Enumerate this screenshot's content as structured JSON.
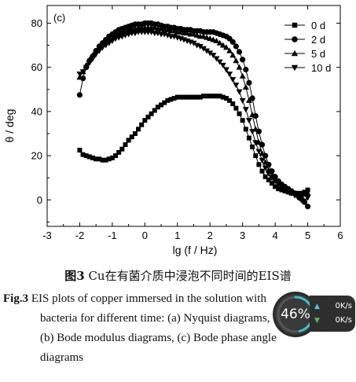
{
  "chart_data": {
    "type": "scatter",
    "panel_label": "(c)",
    "xlabel": "lg (f / Hz)",
    "ylabel": "θ / deg",
    "xlim": [
      -3,
      6
    ],
    "ylim": [
      -12,
      88
    ],
    "x_ticks": [
      -3,
      -2,
      -1,
      0,
      1,
      2,
      3,
      4,
      5,
      6
    ],
    "y_ticks": [
      0,
      20,
      40,
      60,
      80
    ],
    "legend_position": "top-right",
    "series": [
      {
        "name": "0 d",
        "marker": "square",
        "points": [
          [
            -2.0,
            22.5
          ],
          [
            -1.9,
            20.5
          ],
          [
            -1.8,
            20.0
          ],
          [
            -1.7,
            19.5
          ],
          [
            -1.6,
            19.0
          ],
          [
            -1.5,
            18.5
          ],
          [
            -1.4,
            18.5
          ],
          [
            -1.3,
            18.0
          ],
          [
            -1.2,
            18.0
          ],
          [
            -1.1,
            18.5
          ],
          [
            -1.0,
            19.0
          ],
          [
            -0.9,
            20.0
          ],
          [
            -0.8,
            21.5
          ],
          [
            -0.7,
            23.0
          ],
          [
            -0.6,
            25.0
          ],
          [
            -0.5,
            27.0
          ],
          [
            -0.4,
            28.5
          ],
          [
            -0.3,
            30.0
          ],
          [
            -0.2,
            32.0
          ],
          [
            -0.1,
            34.0
          ],
          [
            0.0,
            36.0
          ],
          [
            0.1,
            37.5
          ],
          [
            0.2,
            39.0
          ],
          [
            0.3,
            40.5
          ],
          [
            0.4,
            42.0
          ],
          [
            0.5,
            43.0
          ],
          [
            0.6,
            44.0
          ],
          [
            0.7,
            45.0
          ],
          [
            0.8,
            45.5
          ],
          [
            0.9,
            46.0
          ],
          [
            1.0,
            46.5
          ],
          [
            1.1,
            46.5
          ],
          [
            1.2,
            46.5
          ],
          [
            1.3,
            46.5
          ],
          [
            1.4,
            46.5
          ],
          [
            1.5,
            46.5
          ],
          [
            1.6,
            46.5
          ],
          [
            1.7,
            46.5
          ],
          [
            1.8,
            47.0
          ],
          [
            1.9,
            47.0
          ],
          [
            2.0,
            47.0
          ],
          [
            2.1,
            47.0
          ],
          [
            2.2,
            47.0
          ],
          [
            2.3,
            47.0
          ],
          [
            2.4,
            46.5
          ],
          [
            2.5,
            46.0
          ],
          [
            2.6,
            45.0
          ],
          [
            2.7,
            43.5
          ],
          [
            2.8,
            41.5
          ],
          [
            2.9,
            39.0
          ],
          [
            3.0,
            36.0
          ],
          [
            3.1,
            32.0
          ],
          [
            3.2,
            28.0
          ],
          [
            3.3,
            24.0
          ],
          [
            3.4,
            20.0
          ],
          [
            3.5,
            16.0
          ],
          [
            3.6,
            13.0
          ],
          [
            3.7,
            10.5
          ],
          [
            3.8,
            9.0
          ],
          [
            3.9,
            7.5
          ],
          [
            4.0,
            6.0
          ],
          [
            4.1,
            5.0
          ],
          [
            4.2,
            4.5
          ],
          [
            4.3,
            4.0
          ],
          [
            4.4,
            3.5
          ],
          [
            4.5,
            3.0
          ],
          [
            4.6,
            3.0
          ],
          [
            4.7,
            3.0
          ],
          [
            4.8,
            3.0
          ],
          [
            4.9,
            3.5
          ],
          [
            5.0,
            4.5
          ]
        ]
      },
      {
        "name": "2 d",
        "marker": "circle",
        "points": [
          [
            -2.0,
            47.5
          ],
          [
            -1.9,
            55.0
          ],
          [
            -1.8,
            60.0
          ],
          [
            -1.7,
            63.0
          ],
          [
            -1.6,
            65.0
          ],
          [
            -1.5,
            67.5
          ],
          [
            -1.4,
            69.5
          ],
          [
            -1.3,
            71.0
          ],
          [
            -1.2,
            72.5
          ],
          [
            -1.1,
            74.0
          ],
          [
            -1.0,
            75.0
          ],
          [
            -0.9,
            76.0
          ],
          [
            -0.8,
            77.0
          ],
          [
            -0.7,
            77.5
          ],
          [
            -0.6,
            78.0
          ],
          [
            -0.5,
            78.5
          ],
          [
            -0.4,
            79.0
          ],
          [
            -0.3,
            79.5
          ],
          [
            -0.2,
            79.5
          ],
          [
            -0.1,
            79.5
          ],
          [
            0.0,
            80.0
          ],
          [
            0.1,
            80.0
          ],
          [
            0.2,
            80.0
          ],
          [
            0.3,
            79.5
          ],
          [
            0.4,
            79.5
          ],
          [
            0.5,
            79.0
          ],
          [
            0.6,
            78.5
          ],
          [
            0.7,
            78.5
          ],
          [
            0.8,
            78.0
          ],
          [
            0.9,
            78.0
          ],
          [
            1.0,
            77.5
          ],
          [
            1.1,
            77.5
          ],
          [
            1.2,
            77.0
          ],
          [
            1.3,
            77.0
          ],
          [
            1.4,
            77.0
          ],
          [
            1.5,
            76.5
          ],
          [
            1.6,
            76.5
          ],
          [
            1.7,
            76.5
          ],
          [
            1.8,
            76.0
          ],
          [
            1.9,
            76.0
          ],
          [
            2.0,
            76.0
          ],
          [
            2.1,
            76.0
          ],
          [
            2.2,
            75.5
          ],
          [
            2.3,
            75.0
          ],
          [
            2.4,
            74.5
          ],
          [
            2.5,
            74.0
          ],
          [
            2.6,
            73.0
          ],
          [
            2.7,
            71.5
          ],
          [
            2.8,
            69.5
          ],
          [
            2.9,
            67.0
          ],
          [
            3.0,
            63.5
          ],
          [
            3.1,
            59.0
          ],
          [
            3.2,
            53.0
          ],
          [
            3.3,
            46.0
          ],
          [
            3.4,
            38.0
          ],
          [
            3.5,
            31.0
          ],
          [
            3.6,
            25.0
          ],
          [
            3.7,
            20.0
          ],
          [
            3.8,
            16.0
          ],
          [
            3.9,
            13.0
          ],
          [
            4.0,
            10.5
          ],
          [
            4.1,
            8.5
          ],
          [
            4.2,
            7.0
          ],
          [
            4.3,
            6.0
          ],
          [
            4.4,
            5.0
          ],
          [
            4.5,
            4.0
          ],
          [
            4.6,
            3.0
          ],
          [
            4.7,
            2.0
          ],
          [
            4.8,
            0.5
          ],
          [
            4.9,
            -1.0
          ],
          [
            5.0,
            -3.0
          ]
        ]
      },
      {
        "name": "5 d",
        "marker": "triangle-up",
        "points": [
          [
            -2.0,
            55.5
          ],
          [
            -1.9,
            58.0
          ],
          [
            -1.8,
            61.0
          ],
          [
            -1.7,
            63.5
          ],
          [
            -1.6,
            65.5
          ],
          [
            -1.5,
            67.5
          ],
          [
            -1.4,
            69.0
          ],
          [
            -1.3,
            70.5
          ],
          [
            -1.2,
            72.0
          ],
          [
            -1.1,
            73.0
          ],
          [
            -1.0,
            74.0
          ],
          [
            -0.9,
            75.0
          ],
          [
            -0.8,
            75.5
          ],
          [
            -0.7,
            76.0
          ],
          [
            -0.6,
            76.5
          ],
          [
            -0.5,
            77.0
          ],
          [
            -0.4,
            77.5
          ],
          [
            -0.3,
            77.5
          ],
          [
            -0.2,
            78.0
          ],
          [
            -0.1,
            78.0
          ],
          [
            0.0,
            78.0
          ],
          [
            0.1,
            78.0
          ],
          [
            0.2,
            78.0
          ],
          [
            0.3,
            78.0
          ],
          [
            0.4,
            77.5
          ],
          [
            0.5,
            77.5
          ],
          [
            0.6,
            77.0
          ],
          [
            0.7,
            77.0
          ],
          [
            0.8,
            76.5
          ],
          [
            0.9,
            76.5
          ],
          [
            1.0,
            76.0
          ],
          [
            1.1,
            76.0
          ],
          [
            1.2,
            75.5
          ],
          [
            1.3,
            75.5
          ],
          [
            1.4,
            75.0
          ],
          [
            1.5,
            75.0
          ],
          [
            1.6,
            74.5
          ],
          [
            1.7,
            74.0
          ],
          [
            1.8,
            74.0
          ],
          [
            1.9,
            73.5
          ],
          [
            2.0,
            73.0
          ],
          [
            2.1,
            72.5
          ],
          [
            2.2,
            72.0
          ],
          [
            2.3,
            71.0
          ],
          [
            2.4,
            70.0
          ],
          [
            2.5,
            69.0
          ],
          [
            2.6,
            67.5
          ],
          [
            2.7,
            65.5
          ],
          [
            2.8,
            63.0
          ],
          [
            2.9,
            60.0
          ],
          [
            3.0,
            56.0
          ],
          [
            3.1,
            51.0
          ],
          [
            3.2,
            45.0
          ],
          [
            3.3,
            38.5
          ],
          [
            3.4,
            32.0
          ],
          [
            3.5,
            26.0
          ],
          [
            3.6,
            21.0
          ],
          [
            3.7,
            17.0
          ],
          [
            3.8,
            13.5
          ],
          [
            3.9,
            11.0
          ],
          [
            4.0,
            9.0
          ],
          [
            4.1,
            7.5
          ],
          [
            4.2,
            6.0
          ],
          [
            4.3,
            5.0
          ],
          [
            4.4,
            4.5
          ],
          [
            4.5,
            3.5
          ],
          [
            4.6,
            3.0
          ],
          [
            4.7,
            2.5
          ],
          [
            4.8,
            2.5
          ],
          [
            4.9,
            2.5
          ],
          [
            5.0,
            3.0
          ]
        ]
      },
      {
        "name": "10 d",
        "marker": "triangle-down",
        "points": [
          [
            -2.0,
            57.0
          ],
          [
            -1.9,
            58.0
          ],
          [
            -1.8,
            60.0
          ],
          [
            -1.7,
            62.0
          ],
          [
            -1.6,
            64.0
          ],
          [
            -1.5,
            66.0
          ],
          [
            -1.4,
            67.5
          ],
          [
            -1.3,
            69.0
          ],
          [
            -1.2,
            70.0
          ],
          [
            -1.1,
            71.0
          ],
          [
            -1.0,
            72.0
          ],
          [
            -0.9,
            73.0
          ],
          [
            -0.8,
            73.5
          ],
          [
            -0.7,
            74.0
          ],
          [
            -0.6,
            74.5
          ],
          [
            -0.5,
            75.0
          ],
          [
            -0.4,
            75.5
          ],
          [
            -0.3,
            75.5
          ],
          [
            -0.2,
            76.0
          ],
          [
            -0.1,
            76.0
          ],
          [
            0.0,
            76.0
          ],
          [
            0.1,
            76.0
          ],
          [
            0.2,
            76.0
          ],
          [
            0.3,
            75.5
          ],
          [
            0.4,
            75.5
          ],
          [
            0.5,
            75.0
          ],
          [
            0.6,
            75.0
          ],
          [
            0.7,
            74.5
          ],
          [
            0.8,
            74.0
          ],
          [
            0.9,
            74.0
          ],
          [
            1.0,
            73.5
          ],
          [
            1.1,
            73.0
          ],
          [
            1.2,
            72.5
          ],
          [
            1.3,
            72.0
          ],
          [
            1.4,
            71.5
          ],
          [
            1.5,
            71.0
          ],
          [
            1.6,
            70.0
          ],
          [
            1.7,
            69.5
          ],
          [
            1.8,
            68.5
          ],
          [
            1.9,
            67.5
          ],
          [
            2.0,
            66.5
          ],
          [
            2.1,
            65.5
          ],
          [
            2.2,
            64.0
          ],
          [
            2.3,
            62.5
          ],
          [
            2.4,
            61.0
          ],
          [
            2.5,
            59.0
          ],
          [
            2.6,
            57.0
          ],
          [
            2.7,
            54.5
          ],
          [
            2.8,
            52.0
          ],
          [
            2.9,
            49.0
          ],
          [
            3.0,
            45.0
          ],
          [
            3.1,
            41.0
          ],
          [
            3.2,
            36.0
          ],
          [
            3.3,
            31.0
          ],
          [
            3.4,
            26.0
          ],
          [
            3.5,
            22.0
          ],
          [
            3.6,
            18.0
          ],
          [
            3.7,
            14.5
          ],
          [
            3.8,
            12.0
          ],
          [
            3.9,
            10.0
          ],
          [
            4.0,
            8.5
          ],
          [
            4.1,
            7.0
          ],
          [
            4.2,
            6.0
          ],
          [
            4.3,
            5.0
          ],
          [
            4.4,
            4.0
          ],
          [
            4.5,
            3.0
          ],
          [
            4.6,
            2.0
          ],
          [
            4.7,
            1.0
          ],
          [
            4.8,
            0.0
          ],
          [
            4.9,
            -0.5
          ],
          [
            5.0,
            1.0
          ]
        ]
      }
    ]
  },
  "caption": {
    "cn_label": "图3",
    "cn_text": " Cu在有菌介质中浸泡不同时间的EIS谱",
    "en_label": "Fig.3",
    "en_line1": "EIS plots of copper immersed in the solution with",
    "en_line2": "bacteria for different time: (a) Nyquist diagrams,",
    "en_line3": "(b) Bode modulus diagrams, (c) Bode phase angle",
    "en_line4": "diagrams"
  },
  "overlay": {
    "percent_text": "46%",
    "percent_value": 46,
    "upload_speed": "0K/s",
    "download_speed": "0K/s",
    "ring_color": "#3fc1c9",
    "up_arrow_color": "#5bc0de",
    "down_arrow_color": "#5cb85c"
  }
}
